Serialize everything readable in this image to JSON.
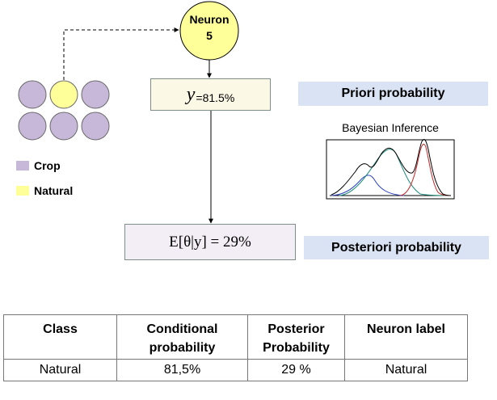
{
  "neuron": {
    "line1": "Neuron",
    "line2": "5"
  },
  "priori_box": {
    "symbol": "y",
    "subscript": "=81.5%"
  },
  "posterior_box": {
    "text": "E[θ|y] = 29%"
  },
  "tags": {
    "priori": "Priori probability",
    "posteriori": "Posteriori  probability"
  },
  "legend": [
    {
      "label": "Crop",
      "color": "#c7b8d9"
    },
    {
      "label": "Natural",
      "color": "#ffff99"
    }
  ],
  "colors": {
    "crop": "#c7b8d9",
    "natural": "#ffff99",
    "neuron": "#ffff99",
    "tag_bg": "#dae3f3"
  },
  "bayes": {
    "title": "Bayesian Inference"
  },
  "table": {
    "headers": [
      "Class",
      "Conditional probability",
      "Posterior Probability",
      "Neuron label"
    ],
    "row": [
      "Natural",
      "81,5%",
      "29 %",
      "Natural"
    ]
  }
}
